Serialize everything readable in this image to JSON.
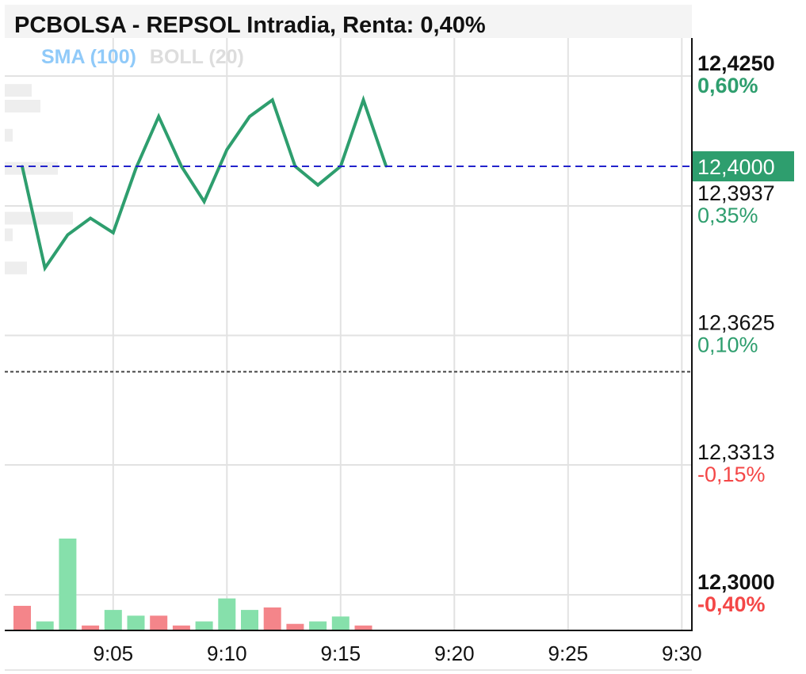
{
  "title": "PCBOLSA - REPSOL Intradia, Renta: 0,40%",
  "legend": {
    "sma": "SMA (100)",
    "boll": "BOLL (20)"
  },
  "colors": {
    "price_line": "#2e9e6e",
    "up": "#86e0ab",
    "down": "#f4858a",
    "positive_text": "#2e9e6e",
    "negative_text": "#f44747",
    "last_price_line": "#2222cc",
    "last_price_badge": "#2e9e6e",
    "previous_close_line": "#444444",
    "grid": "#e2e2e2"
  },
  "chart_data": {
    "type": "line",
    "series": [
      {
        "values": [
          {
            "x": "9:01",
            "y": 12.4
          },
          {
            "x": "9:02",
            "y": 12.3755
          },
          {
            "x": "9:03",
            "y": 12.3835
          },
          {
            "x": "9:04",
            "y": 12.3875
          },
          {
            "x": "9:05",
            "y": 12.384
          },
          {
            "x": "9:06",
            "y": 12.3995
          },
          {
            "x": "9:07",
            "y": 12.412
          },
          {
            "x": "9:08",
            "y": 12.4
          },
          {
            "x": "9:09",
            "y": 12.3915
          },
          {
            "x": "9:10",
            "y": 12.404
          },
          {
            "x": "9:11",
            "y": 12.412
          },
          {
            "x": "9:12",
            "y": 12.416
          },
          {
            "x": "9:13",
            "y": 12.4
          },
          {
            "x": "9:14",
            "y": 12.3955
          },
          {
            "x": "9:15",
            "y": 12.4
          },
          {
            "x": "9:16",
            "y": 12.416
          },
          {
            "x": "9:17",
            "y": 12.4
          }
        ]
      }
    ],
    "volume": [
      {
        "x": "9:01",
        "v": 30,
        "dir": "down"
      },
      {
        "x": "9:02",
        "v": 11,
        "dir": "up"
      },
      {
        "x": "9:03",
        "v": 112,
        "dir": "up"
      },
      {
        "x": "9:04",
        "v": 6,
        "dir": "down"
      },
      {
        "x": "9:05",
        "v": 25,
        "dir": "up"
      },
      {
        "x": "9:06",
        "v": 18,
        "dir": "up"
      },
      {
        "x": "9:07",
        "v": 18,
        "dir": "down"
      },
      {
        "x": "9:08",
        "v": 6,
        "dir": "down"
      },
      {
        "x": "9:09",
        "v": 11,
        "dir": "up"
      },
      {
        "x": "9:10",
        "v": 39,
        "dir": "up"
      },
      {
        "x": "9:11",
        "v": 25,
        "dir": "up"
      },
      {
        "x": "9:12",
        "v": 28,
        "dir": "down"
      },
      {
        "x": "9:13",
        "v": 8,
        "dir": "down"
      },
      {
        "x": "9:14",
        "v": 11,
        "dir": "up"
      },
      {
        "x": "9:15",
        "v": 17,
        "dir": "up"
      },
      {
        "x": "9:16",
        "v": 6,
        "dir": "down"
      }
    ],
    "volume_profile": [
      {
        "price": 12.4183,
        "v": 34
      },
      {
        "price": 12.4145,
        "v": 45
      },
      {
        "price": 12.4075,
        "v": 10
      },
      {
        "price": 12.3995,
        "v": 67
      },
      {
        "price": 12.3875,
        "v": 86
      },
      {
        "price": 12.3835,
        "v": 10
      },
      {
        "price": 12.3755,
        "v": 28
      }
    ],
    "x_ticks": [
      "9:05",
      "9:10",
      "9:15",
      "9:20",
      "9:25",
      "9:30"
    ],
    "xlim": [
      "9:00",
      "9:30"
    ],
    "ylim": [
      12.295,
      12.4275
    ],
    "y_ticks": [
      {
        "value": 12.425,
        "label": "12,4250",
        "pct": "0,60%",
        "bold": true,
        "sign": "pos"
      },
      {
        "value": 12.3937,
        "label": "12,3937",
        "pct": "0,35%",
        "bold": false,
        "sign": "pos"
      },
      {
        "value": 12.3625,
        "label": "12,3625",
        "pct": "0,10%",
        "bold": false,
        "sign": "pos"
      },
      {
        "value": 12.3313,
        "label": "12,3313",
        "pct": "-0,15%",
        "bold": false,
        "sign": "neg"
      },
      {
        "value": 12.3,
        "label": "12,3000",
        "pct": "-0,40%",
        "bold": true,
        "sign": "neg"
      }
    ],
    "last_price": {
      "value": 12.4,
      "label": "12,4000"
    },
    "previous_close": 12.3505,
    "grid": true
  }
}
